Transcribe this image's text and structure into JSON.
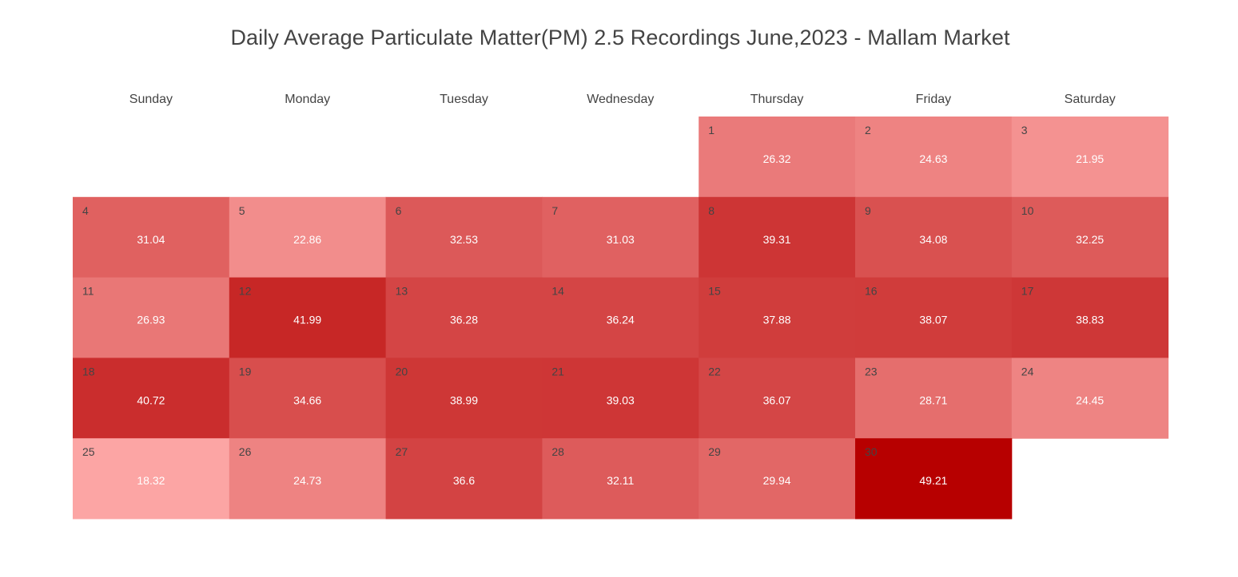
{
  "chart_data": {
    "type": "heatmap",
    "title": "Daily Average Particulate Matter(PM) 2.5 Recordings June,2023 - Mallam Market",
    "weekdays": [
      "Sunday",
      "Monday",
      "Tuesday",
      "Wednesday",
      "Thursday",
      "Friday",
      "Saturday"
    ],
    "first_weekday_index": 4,
    "days": [
      1,
      2,
      3,
      4,
      5,
      6,
      7,
      8,
      9,
      10,
      11,
      12,
      13,
      14,
      15,
      16,
      17,
      18,
      19,
      20,
      21,
      22,
      23,
      24,
      25,
      26,
      27,
      28,
      29,
      30
    ],
    "values": [
      26.32,
      24.63,
      21.95,
      31.04,
      22.86,
      32.53,
      31.03,
      39.31,
      34.08,
      32.25,
      26.93,
      41.99,
      36.28,
      36.24,
      37.88,
      38.07,
      38.83,
      40.72,
      34.66,
      38.99,
      39.03,
      36.07,
      28.71,
      24.45,
      18.32,
      24.73,
      36.6,
      32.11,
      29.94,
      49.21
    ],
    "color_scale": {
      "min": 18.32,
      "max": 49.21,
      "low_color": "#fca5a4",
      "high_color": "#b70000"
    }
  }
}
